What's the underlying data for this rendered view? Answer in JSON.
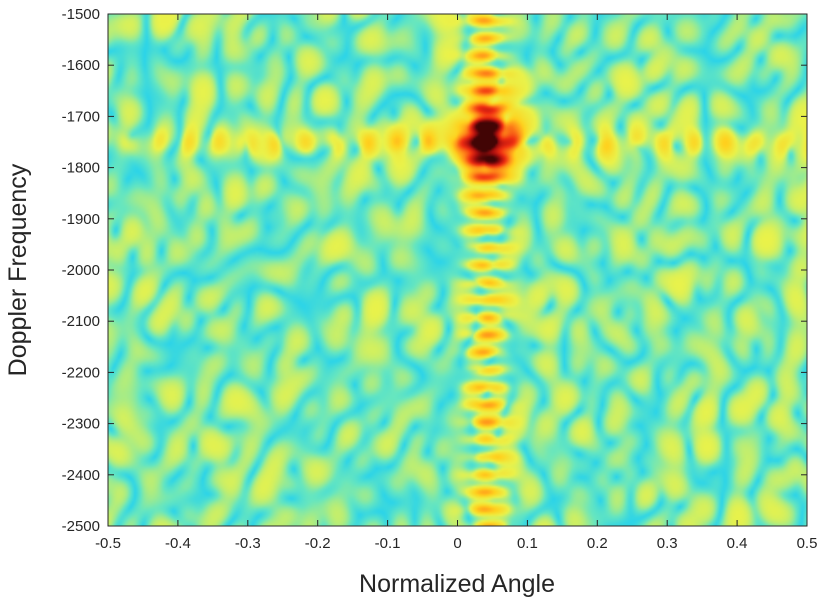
{
  "chart_data": {
    "type": "heatmap",
    "title": "",
    "xlabel": "Normalized Angle",
    "ylabel": "Doppler Frequency",
    "xlim": [
      -0.5,
      0.5
    ],
    "ylim": [
      -2500,
      -1500
    ],
    "y_reversed": true,
    "x_ticks": [
      -0.5,
      -0.4,
      -0.3,
      -0.2,
      -0.1,
      0,
      0.1,
      0.2,
      0.3,
      0.4,
      0.5
    ],
    "x_tick_labels": [
      "-0.5",
      "-0.4",
      "-0.3",
      "-0.2",
      "-0.1",
      "0",
      "0.1",
      "0.2",
      "0.3",
      "0.4",
      "0.5"
    ],
    "y_ticks": [
      -1500,
      -1600,
      -1700,
      -1800,
      -1900,
      -2000,
      -2100,
      -2200,
      -2300,
      -2400,
      -2500
    ],
    "y_tick_labels": [
      "-1500",
      "-1600",
      "-1700",
      "-1800",
      "-1900",
      "-2000",
      "-2100",
      "-2200",
      "-2300",
      "-2400",
      "-2500"
    ],
    "colormap": "jet",
    "colormap_stops": [
      "#2b6fe0",
      "#1fd0f2",
      "#66e6c0",
      "#eaf24a",
      "#ffd21e",
      "#ff8c1a",
      "#f02e12",
      "#a80e0e",
      "#420505"
    ],
    "peak": {
      "x": 0.04,
      "y": -1750
    },
    "grid": false,
    "legend": "none"
  }
}
